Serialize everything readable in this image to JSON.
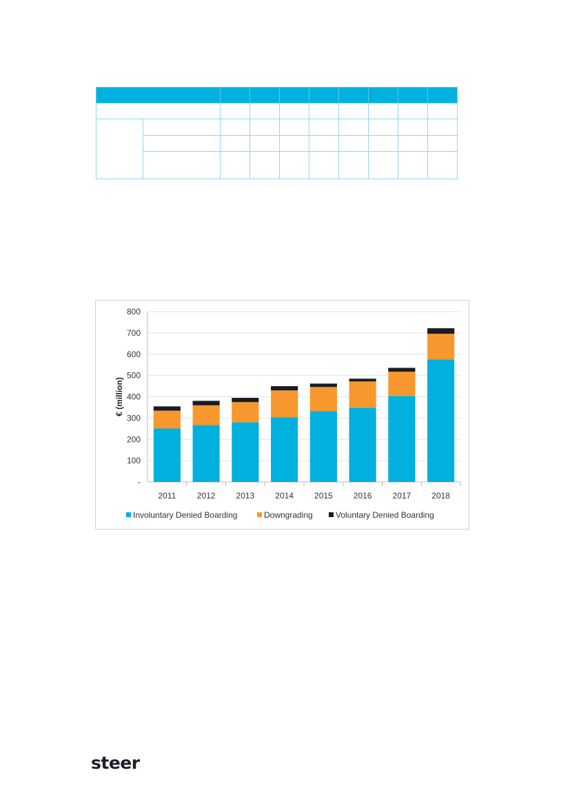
{
  "logo": "steer",
  "colors": {
    "idb": "#00b0de",
    "dg": "#f7982e",
    "vdb": "#1a1c24",
    "table_header": "#00b0de"
  },
  "chart_data": {
    "type": "bar",
    "stacked": true,
    "title": "",
    "xlabel": "",
    "ylabel": "€ (million)",
    "ylim": [
      0,
      800
    ],
    "yticks": [
      0,
      100,
      200,
      300,
      400,
      500,
      600,
      700,
      800
    ],
    "ytick_labels": [
      "-",
      "100",
      "200",
      "300",
      "400",
      "500",
      "600",
      "700",
      "800"
    ],
    "grid": true,
    "legend_position": "bottom",
    "categories": [
      "2011",
      "2012",
      "2013",
      "2014",
      "2015",
      "2016",
      "2017",
      "2018"
    ],
    "series": [
      {
        "name": "Involuntary Denied Boarding",
        "color": "#00b0de",
        "values": [
          251,
          267,
          280,
          304,
          333,
          349,
          404,
          576
        ]
      },
      {
        "name": "Downgrading",
        "color": "#f7982e",
        "values": [
          84,
          93,
          95,
          126,
          113,
          123,
          114,
          120
        ]
      },
      {
        "name": "Voluntary Denied Boarding",
        "color": "#1a1c24",
        "values": [
          20,
          21,
          20,
          20,
          16,
          13,
          18,
          26
        ]
      }
    ]
  }
}
